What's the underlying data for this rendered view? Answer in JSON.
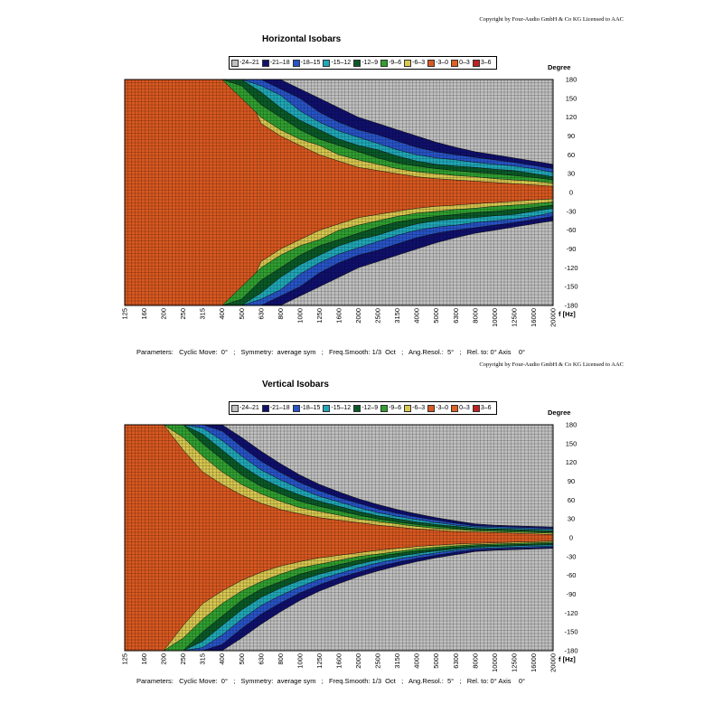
{
  "chart_data": [
    {
      "type": "heatmap",
      "copyright": "Copyright by Four-Audio GmbH & Co KG   Licensed to AAC",
      "title": "Horizontal Isobars",
      "xlabel": "f [Hz]",
      "ylabel": "Degree",
      "x_ticks": [
        "125",
        "160",
        "200",
        "250",
        "315",
        "400",
        "500",
        "630",
        "800",
        "1000",
        "1250",
        "1600",
        "2000",
        "2500",
        "3150",
        "4000",
        "5000",
        "6300",
        "8000",
        "10000",
        "12500",
        "16000",
        "20000"
      ],
      "y_ticks": [
        "180",
        "150",
        "120",
        "90",
        "60",
        "30",
        "0",
        "-30",
        "-60",
        "-90",
        "-120",
        "-150",
        "-180"
      ],
      "ylim": [
        -180,
        180
      ],
      "x_scale": "log",
      "grid": true,
      "legend": {
        "position": "top",
        "entries": [
          {
            "label": "-24–21",
            "color": "#c0c0c0"
          },
          {
            "label": "-21–18",
            "color": "#10106e"
          },
          {
            "label": "-18–15",
            "color": "#2854c8"
          },
          {
            "label": "-15–12",
            "color": "#20a8b8"
          },
          {
            "label": "-12–9",
            "color": "#0a5a28"
          },
          {
            "label": "-9–6",
            "color": "#30a030"
          },
          {
            "label": "-6–3",
            "color": "#d8c850"
          },
          {
            "label": "-3–0",
            "color": "#d85820"
          },
          {
            "label": "0–3",
            "color": "#e06020"
          },
          {
            "label": "3–6",
            "color": "#c02020"
          }
        ]
      },
      "contour_half_angles_deg": {
        "frequencies": [
          "125",
          "160",
          "200",
          "250",
          "315",
          "400",
          "500",
          "630",
          "800",
          "1000",
          "1250",
          "1600",
          "2000",
          "2500",
          "3150",
          "4000",
          "5000",
          "6300",
          "8000",
          "10000",
          "12500",
          "16000",
          "20000"
        ],
        "-3": [
          180,
          180,
          180,
          180,
          180,
          180,
          180,
          110,
          90,
          75,
          60,
          50,
          40,
          35,
          30,
          25,
          22,
          20,
          18,
          16,
          14,
          12,
          10
        ],
        "-6": [
          180,
          180,
          180,
          180,
          180,
          180,
          150,
          120,
          100,
          85,
          75,
          60,
          52,
          45,
          38,
          33,
          30,
          27,
          25,
          22,
          20,
          18,
          15
        ],
        "-9": [
          180,
          180,
          180,
          180,
          180,
          180,
          170,
          140,
          120,
          100,
          85,
          75,
          65,
          55,
          47,
          42,
          38,
          35,
          32,
          30,
          27,
          24,
          20
        ],
        "-12": [
          180,
          180,
          180,
          180,
          180,
          180,
          180,
          160,
          135,
          115,
          100,
          85,
          75,
          68,
          58,
          50,
          45,
          42,
          40,
          37,
          35,
          30,
          25
        ],
        "-15": [
          180,
          180,
          180,
          180,
          180,
          180,
          180,
          170,
          155,
          130,
          112,
          98,
          88,
          78,
          68,
          60,
          55,
          52,
          48,
          45,
          42,
          38,
          32
        ],
        "-18": [
          180,
          180,
          180,
          180,
          180,
          180,
          180,
          180,
          165,
          150,
          128,
          112,
          100,
          92,
          82,
          72,
          65,
          60,
          56,
          52,
          48,
          43,
          38
        ],
        "-21": [
          180,
          180,
          180,
          180,
          180,
          180,
          180,
          180,
          180,
          165,
          150,
          135,
          120,
          110,
          100,
          90,
          80,
          72,
          65,
          60,
          55,
          50,
          45
        ]
      },
      "parameters": "Parameters:   Cyclic Move:  0°   ;   Symmetry:  average sym   ;   Freq.Smooth: 1/3  Oct   ;   Ang.Resol.:  5°   ;   Rel. to: 0° Axis    0°"
    },
    {
      "type": "heatmap",
      "copyright": "Copyright by Four-Audio GmbH & Co KG   Licensed to AAC",
      "title": "Vertical Isobars",
      "xlabel": "f [Hz]",
      "ylabel": "Degree",
      "x_ticks": [
        "125",
        "160",
        "200",
        "250",
        "315",
        "400",
        "500",
        "630",
        "800",
        "1000",
        "1250",
        "1600",
        "2000",
        "2500",
        "3150",
        "4000",
        "5000",
        "6300",
        "8000",
        "10000",
        "12500",
        "16000",
        "20000"
      ],
      "y_ticks": [
        "180",
        "150",
        "120",
        "90",
        "60",
        "30",
        "0",
        "-30",
        "-60",
        "-90",
        "-120",
        "-150",
        "-180"
      ],
      "ylim": [
        -180,
        180
      ],
      "x_scale": "log",
      "grid": true,
      "legend": {
        "position": "top",
        "entries": [
          {
            "label": "-24–21",
            "color": "#c0c0c0"
          },
          {
            "label": "-21–18",
            "color": "#10106e"
          },
          {
            "label": "-18–15",
            "color": "#2854c8"
          },
          {
            "label": "-15–12",
            "color": "#20a8b8"
          },
          {
            "label": "-12–9",
            "color": "#0a5a28"
          },
          {
            "label": "-9–6",
            "color": "#30a030"
          },
          {
            "label": "-6–3",
            "color": "#d8c850"
          },
          {
            "label": "-3–0",
            "color": "#d85820"
          },
          {
            "label": "0–3",
            "color": "#e06020"
          },
          {
            "label": "3–6",
            "color": "#c02020"
          }
        ]
      },
      "contour_half_angles_deg": {
        "frequencies": [
          "125",
          "160",
          "200",
          "250",
          "315",
          "400",
          "500",
          "630",
          "800",
          "1000",
          "1250",
          "1600",
          "2000",
          "2500",
          "3150",
          "4000",
          "5000",
          "6300",
          "8000",
          "10000",
          "12500",
          "16000",
          "20000"
        ],
        "-3": [
          180,
          180,
          180,
          140,
          105,
          85,
          68,
          55,
          45,
          38,
          32,
          28,
          24,
          20,
          17,
          14,
          12,
          10,
          9,
          8,
          7,
          6,
          5
        ],
        "-6": [
          180,
          180,
          180,
          160,
          130,
          105,
          85,
          70,
          58,
          48,
          42,
          36,
          30,
          26,
          22,
          18,
          15,
          13,
          11,
          10,
          9,
          8,
          7
        ],
        "-9": [
          180,
          180,
          180,
          180,
          150,
          125,
          100,
          82,
          70,
          58,
          50,
          43,
          36,
          30,
          25,
          21,
          18,
          15,
          13,
          12,
          11,
          10,
          9
        ],
        "-12": [
          180,
          180,
          180,
          180,
          165,
          140,
          115,
          95,
          80,
          68,
          58,
          50,
          42,
          35,
          30,
          25,
          21,
          18,
          15,
          14,
          13,
          12,
          11
        ],
        "-15": [
          180,
          180,
          180,
          180,
          175,
          155,
          130,
          108,
          92,
          78,
          66,
          57,
          48,
          40,
          34,
          29,
          24,
          20,
          17,
          16,
          15,
          14,
          13
        ],
        "-18": [
          180,
          180,
          180,
          180,
          180,
          170,
          145,
          122,
          104,
          88,
          75,
          64,
          55,
          46,
          39,
          33,
          28,
          23,
          19,
          18,
          17,
          16,
          15
        ],
        "-21": [
          180,
          180,
          180,
          180,
          180,
          180,
          160,
          138,
          118,
          100,
          85,
          73,
          62,
          53,
          45,
          38,
          32,
          27,
          22,
          20,
          19,
          18,
          17
        ]
      },
      "parameters": "Parameters:   Cyclic Move:  0°   ;   Symmetry:  average sym   ;   Freq.Smooth: 1/3  Oct   ;   Ang.Resol.:  5°   ;   Rel. to: 0° Axis    0°"
    }
  ]
}
